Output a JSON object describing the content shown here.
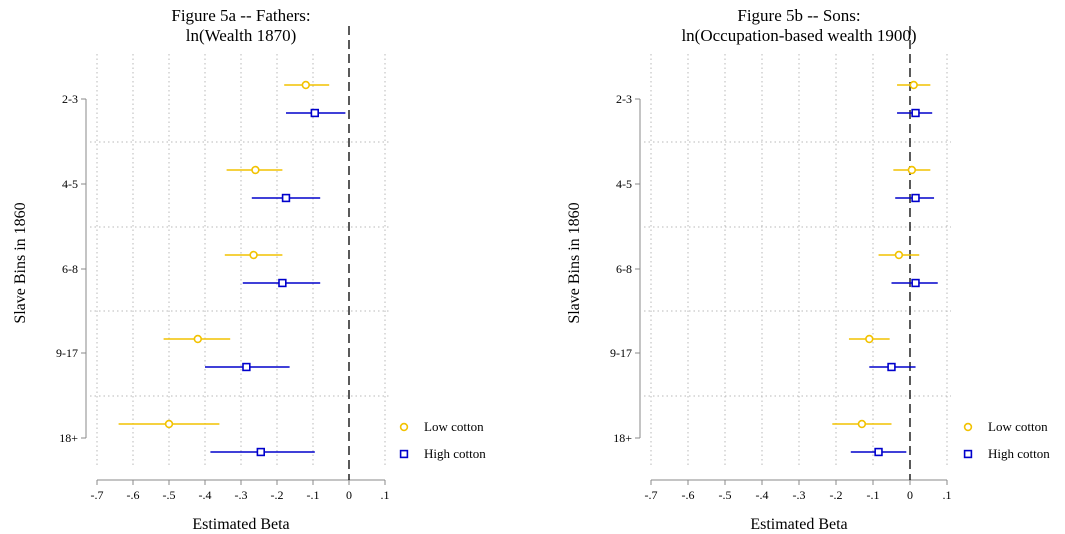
{
  "colors": {
    "low": "#f2c200",
    "high": "#0000cc",
    "grid": "#b8b8b8",
    "axis": "#888888",
    "zero": "#000000"
  },
  "legend": [
    {
      "key": "low",
      "label": "Low cotton",
      "marker": "circle"
    },
    {
      "key": "high",
      "label": "High cotton",
      "marker": "square"
    }
  ],
  "chart_data": [
    {
      "type": "coefficient-plot",
      "title_lines": [
        "Figure 5a -- Fathers:",
        "ln(Wealth 1870)"
      ],
      "xlabel": "Estimated Beta",
      "ylabel": "Slave Bins in 1860",
      "xlim": [
        -0.7,
        0.1
      ],
      "xticks": [
        -0.7,
        -0.6,
        -0.5,
        -0.4,
        -0.3,
        -0.2,
        -0.1,
        0,
        0.1
      ],
      "xtick_labels": [
        "-.7",
        "-.6",
        "-.5",
        "-.4",
        "-.3",
        "-.2",
        "-.1",
        "0",
        ".1"
      ],
      "categories": [
        "2-3",
        "4-5",
        "6-8",
        "9-17",
        "18+"
      ],
      "grid": true,
      "reference_line_x": 0,
      "series": [
        {
          "name": "Low cotton",
          "key": "low",
          "estimates": [
            -0.12,
            -0.26,
            -0.265,
            -0.42,
            -0.5
          ],
          "ci_low": [
            -0.18,
            -0.34,
            -0.345,
            -0.515,
            -0.64
          ],
          "ci_high": [
            -0.055,
            -0.185,
            -0.185,
            -0.33,
            -0.36
          ]
        },
        {
          "name": "High cotton",
          "key": "high",
          "estimates": [
            -0.095,
            -0.175,
            -0.185,
            -0.285,
            -0.245
          ],
          "ci_low": [
            -0.175,
            -0.27,
            -0.295,
            -0.4,
            -0.385
          ],
          "ci_high": [
            -0.01,
            -0.08,
            -0.08,
            -0.165,
            -0.095
          ]
        }
      ]
    },
    {
      "type": "coefficient-plot",
      "title_lines": [
        "Figure 5b -- Sons:",
        "ln(Occupation-based wealth 1900)"
      ],
      "xlabel": "Estimated Beta",
      "ylabel": "Slave Bins in 1860",
      "xlim": [
        -0.7,
        0.1
      ],
      "xticks": [
        -0.7,
        -0.6,
        -0.5,
        -0.4,
        -0.3,
        -0.2,
        -0.1,
        0,
        0.1
      ],
      "xtick_labels": [
        "-.7",
        "-.6",
        "-.5",
        "-.4",
        "-.3",
        "-.2",
        "-.1",
        "0",
        ".1"
      ],
      "categories": [
        "2-3",
        "4-5",
        "6-8",
        "9-17",
        "18+"
      ],
      "grid": true,
      "reference_line_x": 0,
      "series": [
        {
          "name": "Low cotton",
          "key": "low",
          "estimates": [
            0.01,
            0.005,
            -0.03,
            -0.11,
            -0.13
          ],
          "ci_low": [
            -0.035,
            -0.045,
            -0.085,
            -0.165,
            -0.21
          ],
          "ci_high": [
            0.055,
            0.055,
            0.025,
            -0.055,
            -0.05
          ]
        },
        {
          "name": "High cotton",
          "key": "high",
          "estimates": [
            0.015,
            0.015,
            0.015,
            -0.05,
            -0.085
          ],
          "ci_low": [
            -0.035,
            -0.04,
            -0.05,
            -0.11,
            -0.16
          ],
          "ci_high": [
            0.06,
            0.065,
            0.075,
            0.015,
            -0.01
          ]
        }
      ]
    }
  ]
}
